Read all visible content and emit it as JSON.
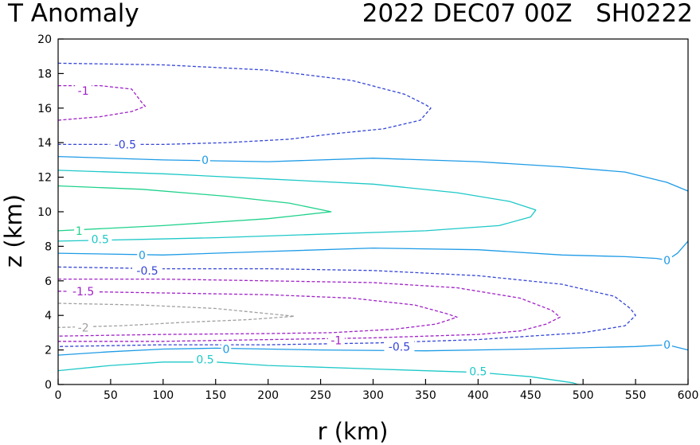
{
  "chart_data": {
    "type": "contour",
    "title_left": "T Anomaly",
    "title_right": "2022 DEC07 00Z   SH0222",
    "xlabel": "r (km)",
    "ylabel": "z (km)",
    "xlim": [
      0,
      600
    ],
    "ylim": [
      0,
      20
    ],
    "xticks": [
      "0",
      "50",
      "100",
      "150",
      "200",
      "250",
      "300",
      "350",
      "400",
      "450",
      "500",
      "550",
      "600"
    ],
    "yticks": [
      "0",
      "2",
      "4",
      "6",
      "8",
      "10",
      "12",
      "14",
      "16",
      "18",
      "20"
    ],
    "colors": {
      "c0": "#1e9be6",
      "c05": "#1fc8c8",
      "c1": "#1fd28c",
      "cm05": "#3545d8",
      "cm1": "#a020c8",
      "cm15": "#a020c8",
      "cm2": "#a0a0a0"
    },
    "contours": [
      {
        "id": "m05-upper",
        "level": "-0.5",
        "color": "cm05",
        "dashed": true,
        "points": [
          [
            0,
            18.6
          ],
          [
            100,
            18.5
          ],
          [
            200,
            18.2
          ],
          [
            280,
            17.6
          ],
          [
            330,
            16.8
          ],
          [
            350,
            16.2
          ],
          [
            355,
            16.0
          ],
          [
            345,
            15.3
          ],
          [
            310,
            14.8
          ],
          [
            260,
            14.5
          ],
          [
            220,
            14.2
          ],
          [
            160,
            14.0
          ],
          [
            100,
            13.9
          ],
          [
            0,
            13.9
          ]
        ],
        "labels": [
          {
            "text": "-0.5",
            "x": 64,
            "y": 13.9
          }
        ]
      },
      {
        "id": "m1-upper",
        "level": "-1",
        "color": "cm1",
        "dashed": true,
        "points": [
          [
            0,
            17.3
          ],
          [
            40,
            17.3
          ],
          [
            70,
            17.1
          ],
          [
            80,
            16.3
          ],
          [
            83,
            16.1
          ],
          [
            70,
            15.8
          ],
          [
            40,
            15.5
          ],
          [
            0,
            15.3
          ]
        ],
        "labels": [
          {
            "text": "-1",
            "x": 24,
            "y": 17.0
          }
        ]
      },
      {
        "id": "z0-upper",
        "level": "0",
        "color": "c0",
        "dashed": false,
        "points": [
          [
            0,
            13.2
          ],
          [
            100,
            13.0
          ],
          [
            200,
            12.9
          ],
          [
            300,
            13.1
          ],
          [
            400,
            12.9
          ],
          [
            480,
            12.6
          ],
          [
            540,
            12.3
          ],
          [
            580,
            11.7
          ],
          [
            600,
            11.2
          ]
        ],
        "labels": [
          {
            "text": "0",
            "x": 140,
            "y": 13.0
          }
        ]
      },
      {
        "id": "p05-mid",
        "level": "0.5",
        "color": "c05",
        "dashed": false,
        "points": [
          [
            0,
            12.4
          ],
          [
            100,
            12.2
          ],
          [
            200,
            11.9
          ],
          [
            300,
            11.6
          ],
          [
            380,
            11.1
          ],
          [
            430,
            10.6
          ],
          [
            455,
            10.1
          ],
          [
            450,
            9.7
          ],
          [
            420,
            9.2
          ],
          [
            350,
            8.9
          ],
          [
            250,
            8.7
          ],
          [
            150,
            8.5
          ],
          [
            80,
            8.4
          ],
          [
            0,
            8.3
          ]
        ],
        "labels": [
          {
            "text": "0.5",
            "x": 40,
            "y": 8.4
          }
        ]
      },
      {
        "id": "p1-mid",
        "level": "1",
        "color": "c1",
        "dashed": false,
        "points": [
          [
            0,
            11.5
          ],
          [
            80,
            11.3
          ],
          [
            160,
            10.9
          ],
          [
            220,
            10.5
          ],
          [
            260,
            10.0
          ],
          [
            200,
            9.6
          ],
          [
            100,
            9.2
          ],
          [
            0,
            8.9
          ]
        ],
        "labels": [
          {
            "text": "1",
            "x": 20,
            "y": 8.9
          }
        ]
      },
      {
        "id": "z0-lower",
        "level": "0",
        "color": "c0",
        "dashed": false,
        "points": [
          [
            0,
            7.6
          ],
          [
            100,
            7.5
          ],
          [
            200,
            7.7
          ],
          [
            300,
            7.9
          ],
          [
            400,
            7.8
          ],
          [
            480,
            7.5
          ],
          [
            540,
            7.4
          ],
          [
            570,
            7.3
          ],
          [
            580,
            7.2
          ],
          [
            590,
            7.6
          ],
          [
            600,
            8.3
          ]
        ],
        "labels": [
          {
            "text": "0",
            "x": 80,
            "y": 7.5
          },
          {
            "text": "0",
            "x": 580,
            "y": 7.2
          }
        ]
      },
      {
        "id": "m05-lower",
        "level": "-0.5",
        "color": "cm05",
        "dashed": true,
        "points": [
          [
            0,
            6.8
          ],
          [
            100,
            6.7
          ],
          [
            200,
            6.7
          ],
          [
            300,
            6.6
          ],
          [
            400,
            6.3
          ],
          [
            480,
            5.8
          ],
          [
            530,
            5.1
          ],
          [
            545,
            4.4
          ],
          [
            550,
            4.0
          ],
          [
            540,
            3.4
          ],
          [
            500,
            3.0
          ],
          [
            450,
            2.8
          ],
          [
            400,
            2.6
          ],
          [
            300,
            2.4
          ],
          [
            200,
            2.3
          ],
          [
            100,
            2.3
          ],
          [
            0,
            2.2
          ]
        ],
        "labels": [
          {
            "text": "-0.5",
            "x": 85,
            "y": 6.6
          },
          {
            "text": "-0.5",
            "x": 325,
            "y": 2.2
          }
        ]
      },
      {
        "id": "m1-lower",
        "level": "-1",
        "color": "cm1",
        "dashed": true,
        "points": [
          [
            0,
            6.1
          ],
          [
            100,
            6.1
          ],
          [
            200,
            6.0
          ],
          [
            300,
            5.9
          ],
          [
            380,
            5.6
          ],
          [
            440,
            5.0
          ],
          [
            470,
            4.3
          ],
          [
            478,
            3.9
          ],
          [
            465,
            3.5
          ],
          [
            440,
            3.1
          ],
          [
            400,
            2.9
          ],
          [
            300,
            2.7
          ],
          [
            200,
            2.6
          ],
          [
            100,
            2.5
          ],
          [
            0,
            2.5
          ]
        ],
        "labels": [
          {
            "text": "-1",
            "x": 265,
            "y": 2.55
          }
        ]
      },
      {
        "id": "m15-lower",
        "level": "-1.5",
        "color": "cm15",
        "dashed": true,
        "points": [
          [
            0,
            5.4
          ],
          [
            100,
            5.3
          ],
          [
            200,
            5.2
          ],
          [
            280,
            5.0
          ],
          [
            340,
            4.6
          ],
          [
            370,
            4.1
          ],
          [
            380,
            3.9
          ],
          [
            360,
            3.5
          ],
          [
            320,
            3.2
          ],
          [
            260,
            3.0
          ],
          [
            200,
            2.95
          ],
          [
            100,
            2.9
          ],
          [
            0,
            2.8
          ]
        ],
        "labels": [
          {
            "text": "-1.5",
            "x": 24,
            "y": 5.4
          }
        ]
      },
      {
        "id": "m2-lower",
        "level": "-2",
        "color": "cm2",
        "dashed": true,
        "points": [
          [
            0,
            4.7
          ],
          [
            80,
            4.6
          ],
          [
            150,
            4.4
          ],
          [
            200,
            4.1
          ],
          [
            225,
            3.95
          ],
          [
            180,
            3.75
          ],
          [
            120,
            3.6
          ],
          [
            60,
            3.4
          ],
          [
            0,
            3.3
          ]
        ],
        "labels": [
          {
            "text": "-2",
            "x": 24,
            "y": 3.3
          }
        ]
      },
      {
        "id": "z0-bottom",
        "level": "0",
        "color": "c0",
        "dashed": false,
        "points": [
          [
            0,
            1.7
          ],
          [
            50,
            1.9
          ],
          [
            100,
            2.05
          ],
          [
            150,
            2.1
          ],
          [
            250,
            2.0
          ],
          [
            350,
            1.95
          ],
          [
            450,
            2.05
          ],
          [
            550,
            2.2
          ],
          [
            580,
            2.3
          ],
          [
            600,
            2.0
          ]
        ],
        "labels": [
          {
            "text": "0",
            "x": 160,
            "y": 2.05
          },
          {
            "text": "0",
            "x": 580,
            "y": 2.3
          }
        ]
      },
      {
        "id": "p05-bottom",
        "level": "0.5",
        "color": "c05",
        "dashed": false,
        "points": [
          [
            0,
            0.8
          ],
          [
            50,
            1.1
          ],
          [
            100,
            1.3
          ],
          [
            150,
            1.3
          ],
          [
            200,
            1.1
          ],
          [
            300,
            0.9
          ],
          [
            400,
            0.7
          ],
          [
            450,
            0.45
          ],
          [
            490,
            0.1
          ],
          [
            495,
            0.0
          ]
        ],
        "labels": [
          {
            "text": "0.5",
            "x": 140,
            "y": 1.45
          },
          {
            "text": "0.5",
            "x": 400,
            "y": 0.75
          }
        ]
      }
    ]
  }
}
